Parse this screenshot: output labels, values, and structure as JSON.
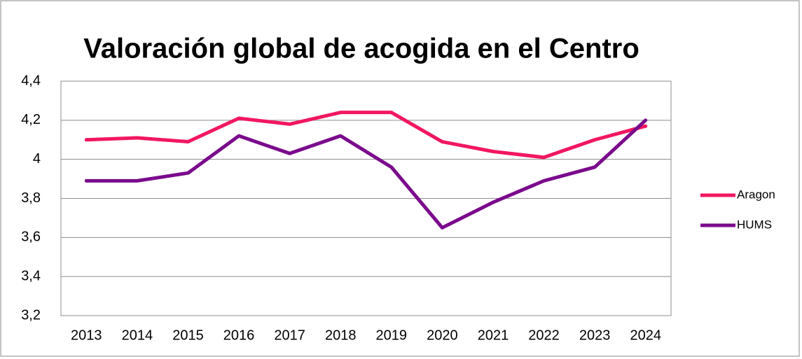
{
  "chart_data": {
    "type": "line",
    "title": "Valoración global de acogida en el Centro",
    "categories": [
      "2013",
      "2014",
      "2015",
      "2016",
      "2017",
      "2018",
      "2019",
      "2020",
      "2021",
      "2022",
      "2023",
      "2024"
    ],
    "series": [
      {
        "name": "Aragon",
        "color": "#f2175f",
        "values": [
          4.1,
          4.11,
          4.09,
          4.21,
          4.18,
          4.24,
          4.24,
          4.09,
          4.04,
          4.01,
          4.1,
          4.17
        ]
      },
      {
        "name": "HUMS",
        "color": "#7a0a8c",
        "values": [
          3.89,
          3.89,
          3.93,
          4.12,
          4.03,
          4.12,
          3.96,
          3.65,
          3.78,
          3.89,
          3.96,
          4.2
        ]
      }
    ],
    "ylim": [
      3.2,
      4.4
    ],
    "yticks": [
      {
        "value": 3.2,
        "label": "3,2"
      },
      {
        "value": 3.4,
        "label": "3,4"
      },
      {
        "value": 3.6,
        "label": "3,6"
      },
      {
        "value": 3.8,
        "label": "3,8"
      },
      4,
      {
        "value": 4.2,
        "label": "4,2"
      },
      {
        "value": 4.4,
        "label": "4,4"
      }
    ],
    "grid": true,
    "legend": "right"
  }
}
